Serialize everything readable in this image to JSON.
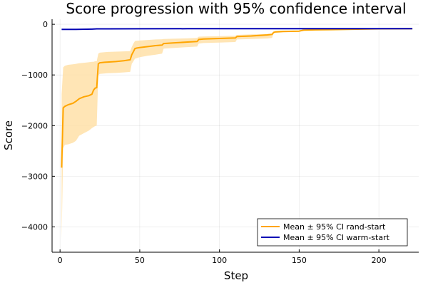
{
  "chart_data": {
    "type": "line",
    "title": "Score progression with 95% confidence interval",
    "xlabel": "Step",
    "ylabel": "Score",
    "xlim": [
      -5,
      225
    ],
    "ylim": [
      -4500,
      100
    ],
    "xticks": [
      0,
      50,
      100,
      150,
      200
    ],
    "xtick_labels": [
      "0",
      "50",
      "100",
      "150",
      "200"
    ],
    "yticks": [
      0,
      -1000,
      -2000,
      -3000,
      -4000
    ],
    "ytick_labels": [
      "0",
      "−1000",
      "−2000",
      "−3000",
      "−4000"
    ],
    "grid": true,
    "legend_position": "bottom-right",
    "series": [
      {
        "name": "Mean ± 95% CI rand-start",
        "color": "#ffa500",
        "band_color": "#ffe0a8",
        "x": [
          1,
          2,
          3,
          5,
          8,
          10,
          12,
          15,
          18,
          20,
          21,
          22,
          23,
          24,
          25,
          28,
          30,
          35,
          40,
          44,
          45,
          46,
          47,
          48,
          50,
          55,
          60,
          64,
          65,
          70,
          80,
          86,
          87,
          90,
          100,
          110,
          111,
          120,
          130,
          133,
          134,
          135,
          140,
          150,
          152,
          153,
          160,
          170,
          180,
          190,
          200,
          210,
          221
        ],
        "mean": [
          -2830,
          -1650,
          -1620,
          -1590,
          -1560,
          -1520,
          -1470,
          -1430,
          -1410,
          -1380,
          -1300,
          -1260,
          -1250,
          -780,
          -760,
          -750,
          -745,
          -735,
          -720,
          -700,
          -600,
          -540,
          -480,
          -470,
          -460,
          -440,
          -420,
          -410,
          -380,
          -370,
          -350,
          -340,
          -300,
          -290,
          -280,
          -270,
          -240,
          -230,
          -210,
          -200,
          -160,
          -150,
          -140,
          -135,
          -120,
          -115,
          -110,
          -105,
          -100,
          -95,
          -90,
          -88,
          -85
        ],
        "upper": [
          -1380,
          -850,
          -820,
          -800,
          -790,
          -780,
          -770,
          -760,
          -750,
          -740,
          -740,
          -730,
          -730,
          -580,
          -560,
          -550,
          -545,
          -540,
          -535,
          -530,
          -450,
          -380,
          -330,
          -325,
          -320,
          -310,
          -300,
          -295,
          -290,
          -285,
          -275,
          -270,
          -245,
          -240,
          -235,
          -225,
          -210,
          -200,
          -190,
          -185,
          -150,
          -140,
          -130,
          -125,
          -110,
          -105,
          -100,
          -95,
          -90,
          -88,
          -85,
          -82,
          -80
        ],
        "lower": [
          -4250,
          -2450,
          -2380,
          -2370,
          -2340,
          -2300,
          -2200,
          -2150,
          -2100,
          -2050,
          -2030,
          -2010,
          -2000,
          -1000,
          -980,
          -970,
          -965,
          -960,
          -950,
          -940,
          -780,
          -730,
          -680,
          -670,
          -650,
          -620,
          -600,
          -580,
          -480,
          -470,
          -450,
          -440,
          -380,
          -370,
          -360,
          -350,
          -300,
          -290,
          -280,
          -270,
          -175,
          -170,
          -160,
          -150,
          -130,
          -125,
          -118,
          -112,
          -108,
          -102,
          -96,
          -93,
          -90
        ]
      },
      {
        "name": "Mean ± 95% CI warm-start",
        "color": "#0000b4",
        "band_color": "#c8c8ff",
        "x": [
          1,
          10,
          20,
          23,
          30,
          50,
          80,
          100,
          150,
          200,
          221
        ],
        "mean": [
          -100,
          -100,
          -95,
          -90,
          -90,
          -88,
          -87,
          -86,
          -86,
          -85,
          -85
        ],
        "upper": [
          -95,
          -95,
          -90,
          -85,
          -85,
          -84,
          -83,
          -82,
          -82,
          -81,
          -81
        ],
        "lower": [
          -105,
          -105,
          -100,
          -95,
          -95,
          -92,
          -91,
          -90,
          -90,
          -89,
          -89
        ]
      }
    ]
  }
}
